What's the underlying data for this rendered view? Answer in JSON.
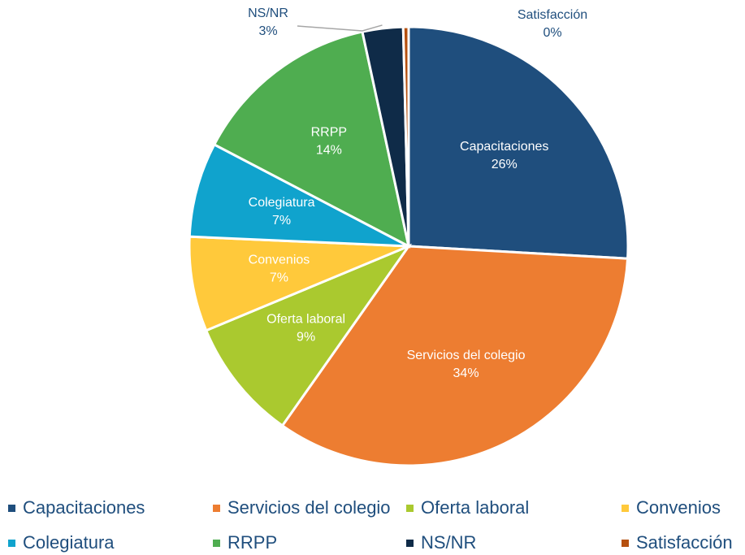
{
  "chart_data": {
    "type": "pie",
    "categories": [
      "Capacitaciones",
      "Servicios del colegio",
      "Oferta laboral",
      "Convenios",
      "Colegiatura",
      "RRPP",
      "NS/NR",
      "Satisfacción"
    ],
    "values": [
      26,
      34,
      9,
      7,
      7,
      14,
      3,
      0.4
    ],
    "value_labels": [
      "26%",
      "34%",
      "9%",
      "7%",
      "7%",
      "14%",
      "3%",
      "0%"
    ],
    "colors": [
      "#1f4e7d",
      "#ed7d31",
      "#aac92f",
      "#ffc93b",
      "#10a3cd",
      "#4fad50",
      "#0f2b48",
      "#b5500f"
    ],
    "legend": "bottom"
  }
}
